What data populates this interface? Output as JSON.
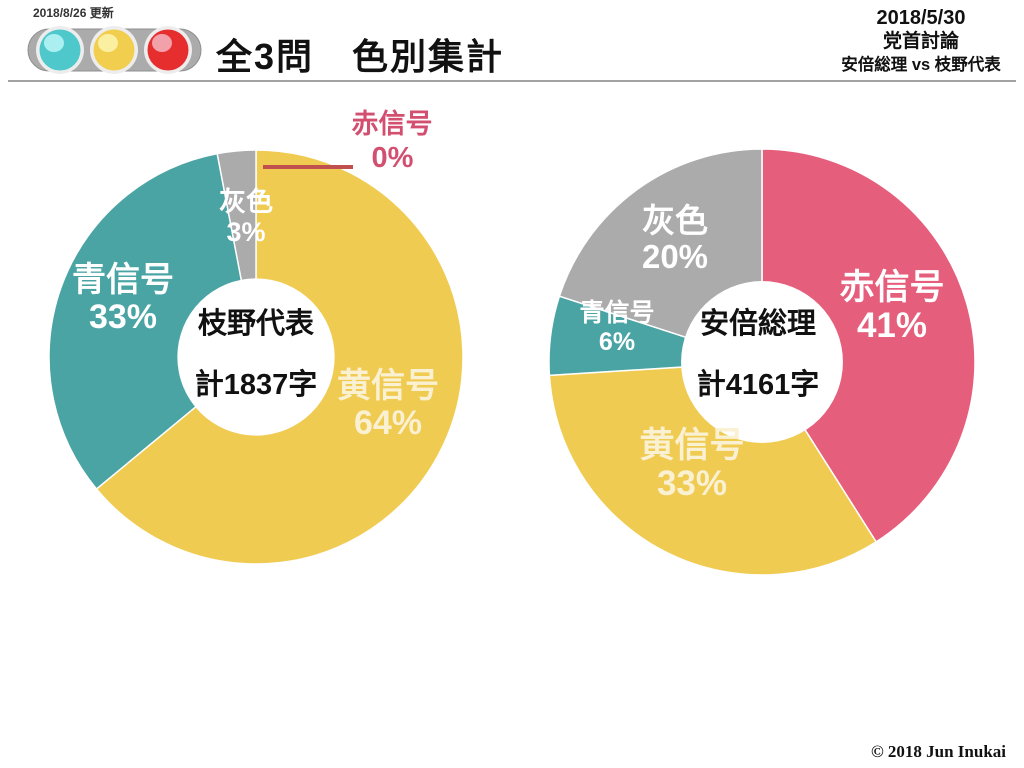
{
  "header": {
    "updated": "2018/8/26 更新",
    "title": "全3問　色別集計",
    "event": {
      "date": "2018/5/30",
      "name": "党首討論",
      "vs": "安倍総理 vs 枝野代表"
    }
  },
  "footer": {
    "copyright": "© 2018 Jun Inukai"
  },
  "colors": {
    "yellow": "#F0CB52",
    "teal": "#4BA4A4",
    "red": "#E55E7B",
    "gray": "#ABABAB",
    "red_callout_text": "#D34F70",
    "leader_line": "#C0504D",
    "traffic_light_body": "#ABABAB",
    "traffic_lamp_teal": "#4EC8CB",
    "traffic_lamp_yellow": "#F2CE4E",
    "traffic_lamp_red": "#E62E2E"
  },
  "chart_data": [
    {
      "type": "pie",
      "variant": "donut",
      "title": "枝野代表",
      "total": "計1837字",
      "start_angle_deg": -90,
      "direction": "clockwise",
      "hole_ratio": 0.38,
      "slices": [
        {
          "label": "黄信号",
          "pct": 64,
          "pct_label": "64%",
          "color": "#F0CB52"
        },
        {
          "label": "青信号",
          "pct": 33,
          "pct_label": "33%",
          "color": "#4BA4A4"
        },
        {
          "label": "灰色",
          "pct": 3,
          "pct_label": "3%",
          "color": "#ABABAB"
        },
        {
          "label": "赤信号",
          "pct": 0,
          "pct_label": "0%",
          "color": "#E55E7B"
        }
      ]
    },
    {
      "type": "pie",
      "variant": "donut",
      "title": "安倍総理",
      "total": "計4161字",
      "start_angle_deg": -90,
      "direction": "clockwise",
      "hole_ratio": 0.38,
      "slices": [
        {
          "label": "赤信号",
          "pct": 41,
          "pct_label": "41%",
          "color": "#E55E7B"
        },
        {
          "label": "黄信号",
          "pct": 33,
          "pct_label": "33%",
          "color": "#F0CB52"
        },
        {
          "label": "青信号",
          "pct": 6,
          "pct_label": "6%",
          "color": "#4BA4A4"
        },
        {
          "label": "灰色",
          "pct": 20,
          "pct_label": "20%",
          "color": "#ABABAB"
        }
      ]
    }
  ]
}
